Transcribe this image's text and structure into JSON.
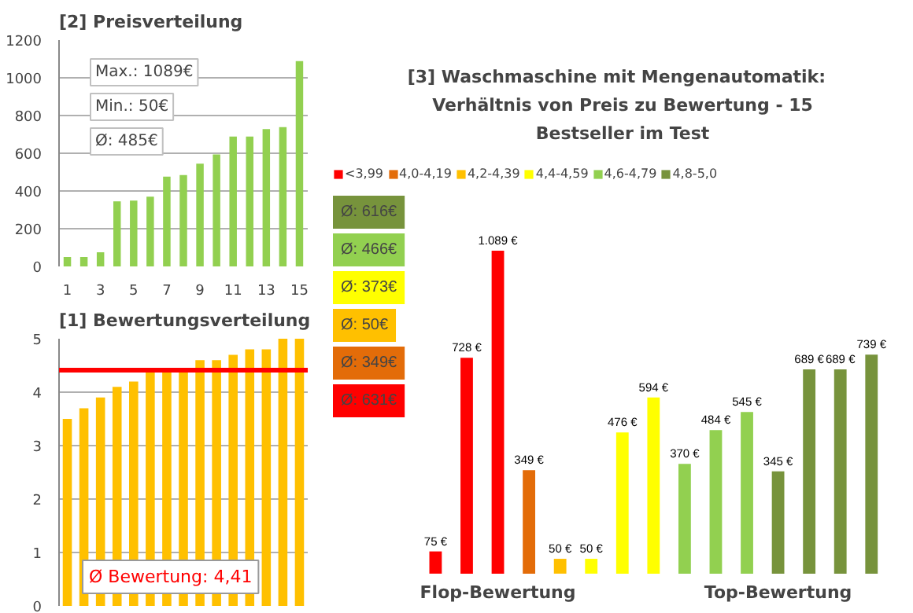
{
  "chart_data": [
    {
      "type": "bar",
      "title": "[2]   Preisverteilung",
      "x": [
        1,
        2,
        3,
        4,
        5,
        6,
        7,
        8,
        9,
        10,
        11,
        12,
        13,
        14,
        15
      ],
      "values": [
        50,
        50,
        75,
        345,
        349,
        370,
        476,
        484,
        545,
        594,
        689,
        689,
        728,
        739,
        1089
      ],
      "color": "#92d050",
      "xlim": [
        0.5,
        15.5
      ],
      "xticks": [
        1,
        3,
        5,
        7,
        9,
        11,
        13,
        15
      ],
      "ylim": [
        0,
        1200
      ],
      "yticks": [
        0,
        200,
        400,
        600,
        800,
        1000,
        1200
      ],
      "grid": "y",
      "annotations": [
        "Max.: 1089€",
        "Min.: 50€",
        "Ø: 485€"
      ]
    },
    {
      "type": "bar",
      "title": "[1]   Bewertungsverteilung",
      "categories": [
        null,
        null,
        null,
        null,
        null,
        null,
        null,
        null,
        null,
        null,
        null,
        null,
        null,
        null,
        null
      ],
      "values": [
        3.5,
        3.7,
        3.9,
        4.1,
        4.2,
        4.4,
        4.4,
        4.4,
        4.6,
        4.6,
        4.7,
        4.8,
        4.8,
        5.0,
        5.0
      ],
      "color": "#ffc000",
      "ylim": [
        0,
        5
      ],
      "yticks": [
        0,
        1,
        2,
        3,
        4,
        5
      ],
      "grid": "y",
      "ref_lines": [
        {
          "axis": "y",
          "value": 4.41,
          "label": "Ø Bewertung: 4,41",
          "color": "#ff0000"
        }
      ]
    },
    {
      "type": "bar",
      "title": "[3]   Waschmaschine mit Mengenautomatik: Verhältnis von Preis zu Bewertung - 15 Bestseller im Test",
      "categories": [
        null,
        null,
        null,
        null,
        null,
        null,
        null,
        null,
        null,
        null,
        null,
        null,
        null,
        null,
        null
      ],
      "series": [
        {
          "name": "<3,99",
          "color": "#ff0000",
          "values": [
            75,
            728,
            1089,
            null,
            null,
            null,
            null,
            null,
            null,
            null,
            null,
            null,
            null,
            null,
            null
          ],
          "value_labels": [
            "75 €",
            "728 €",
            "1.089 €",
            null,
            null,
            null,
            null,
            null,
            null,
            null,
            null,
            null,
            null,
            null,
            null
          ]
        },
        {
          "name": "4,0-4,19",
          "color": "#e36c09",
          "values": [
            null,
            null,
            null,
            349,
            null,
            null,
            null,
            null,
            null,
            null,
            null,
            null,
            null,
            null,
            null
          ],
          "value_labels": [
            null,
            null,
            null,
            "349 €",
            null,
            null,
            null,
            null,
            null,
            null,
            null,
            null,
            null,
            null,
            null
          ]
        },
        {
          "name": "4,2-4,39",
          "color": "#ffc000",
          "values": [
            null,
            null,
            null,
            null,
            50,
            null,
            null,
            null,
            null,
            null,
            null,
            null,
            null,
            null,
            null
          ],
          "value_labels": [
            null,
            null,
            null,
            null,
            "50 €",
            null,
            null,
            null,
            null,
            null,
            null,
            null,
            null,
            null,
            null
          ]
        },
        {
          "name": "4,4-4,59",
          "color": "#ffff00",
          "values": [
            null,
            null,
            null,
            null,
            null,
            50,
            476,
            594,
            null,
            null,
            null,
            null,
            null,
            null,
            null
          ],
          "value_labels": [
            null,
            null,
            null,
            null,
            null,
            "50 €",
            "476 €",
            "594 €",
            null,
            null,
            null,
            null,
            null,
            null,
            null
          ]
        },
        {
          "name": "4,6-4,79",
          "color": "#92d050",
          "values": [
            null,
            null,
            null,
            null,
            null,
            null,
            null,
            null,
            370,
            484,
            545,
            null,
            null,
            null,
            null
          ],
          "value_labels": [
            null,
            null,
            null,
            null,
            null,
            null,
            null,
            null,
            "370 €",
            "484 €",
            "545 €",
            null,
            null,
            null,
            null
          ]
        },
        {
          "name": "4,8-5,0",
          "color": "#77933c",
          "values": [
            null,
            null,
            null,
            null,
            null,
            null,
            null,
            null,
            null,
            null,
            null,
            345,
            689,
            689,
            739
          ],
          "value_labels": [
            null,
            null,
            null,
            null,
            null,
            null,
            null,
            null,
            null,
            null,
            null,
            "345 €",
            "689 €",
            "689 €",
            "739 €"
          ]
        }
      ],
      "legend": "top",
      "stacked": true,
      "annotations": [
        "Ø: 616€",
        "Ø: 466€",
        "Ø: 373€",
        "Ø: 50€",
        "Ø: 349€",
        "Ø: 631€",
        "Flop-Bewertung",
        "Top-Bewertung"
      ]
    }
  ]
}
